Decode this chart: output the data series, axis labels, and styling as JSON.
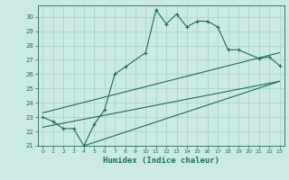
{
  "xlabel": "Humidex (Indice chaleur)",
  "main_x": [
    0,
    1,
    2,
    3,
    4,
    5,
    6,
    7,
    8,
    10,
    11,
    12,
    13,
    14,
    15,
    16,
    17,
    18,
    19,
    21,
    22,
    23
  ],
  "main_y": [
    23.0,
    22.7,
    22.2,
    22.2,
    21.0,
    22.5,
    23.5,
    26.0,
    26.5,
    27.5,
    30.5,
    29.5,
    30.2,
    29.3,
    29.7,
    29.7,
    29.3,
    27.7,
    27.7,
    27.1,
    27.2,
    26.6
  ],
  "line1_x": [
    0,
    23
  ],
  "line1_y": [
    22.3,
    25.5
  ],
  "line2_x": [
    0,
    23
  ],
  "line2_y": [
    23.3,
    27.5
  ],
  "line3_x": [
    4,
    23
  ],
  "line3_y": [
    21.0,
    25.5
  ],
  "bg_color": "#cceae4",
  "grid_color": "#aad4cc",
  "line_color": "#1a6b5a",
  "ylim": [
    21,
    30.8
  ],
  "xlim": [
    -0.5,
    23.5
  ],
  "yticks": [
    21,
    22,
    23,
    24,
    25,
    26,
    27,
    28,
    29,
    30
  ],
  "xticks": [
    0,
    1,
    2,
    3,
    4,
    5,
    6,
    7,
    8,
    9,
    10,
    11,
    12,
    13,
    14,
    15,
    16,
    17,
    18,
    19,
    20,
    21,
    22,
    23
  ]
}
